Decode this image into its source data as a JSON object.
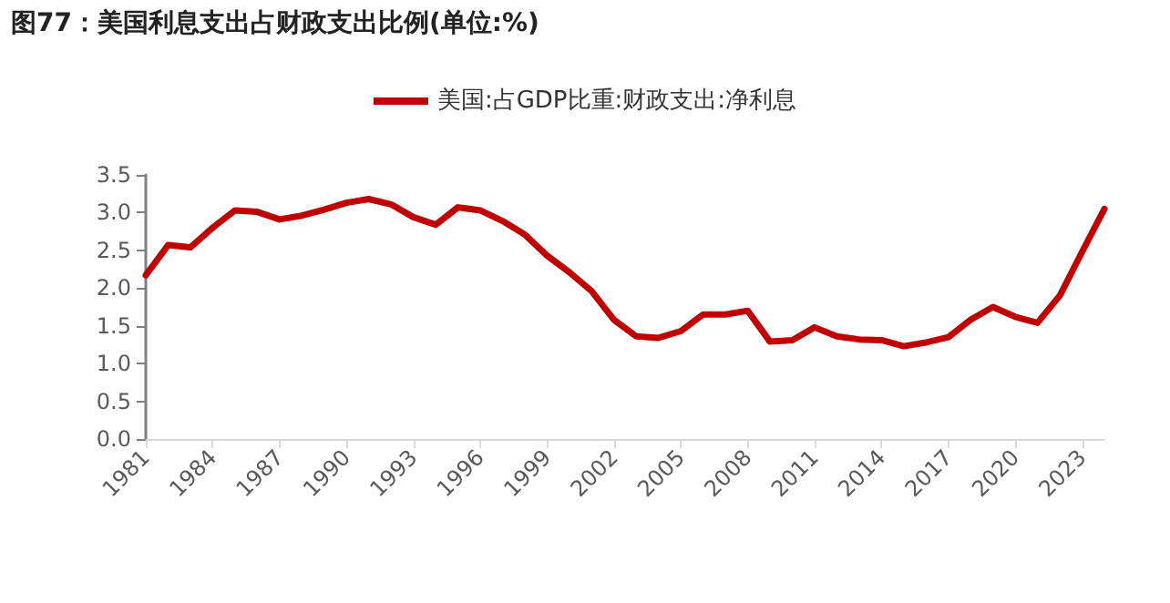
{
  "chart_data": {
    "type": "line",
    "title": "图77：美国利息支出占财政支出比例(单位:%)",
    "categories": [
      "1981",
      null,
      null,
      "1984",
      null,
      null,
      "1987",
      null,
      null,
      "1990",
      null,
      null,
      "1993",
      null,
      null,
      "1996",
      null,
      null,
      "1999",
      null,
      null,
      "2002",
      null,
      null,
      "2005",
      null,
      null,
      "2008",
      null,
      null,
      "2011",
      null,
      null,
      "2014",
      null,
      null,
      "2017",
      null,
      null,
      "2020",
      null,
      null,
      "2023",
      null
    ],
    "series": [
      {
        "name": "美国:占GDP比重:财政支出:净利息",
        "color": "#c00000",
        "values": [
          2.17,
          2.57,
          2.54,
          2.8,
          3.03,
          3.01,
          2.91,
          2.96,
          3.04,
          3.13,
          3.18,
          3.11,
          2.94,
          2.84,
          3.07,
          3.03,
          2.89,
          2.71,
          2.43,
          2.21,
          1.96,
          1.58,
          1.36,
          1.34,
          1.43,
          1.65,
          1.65,
          1.7,
          1.29,
          1.31,
          1.48,
          1.36,
          1.32,
          1.31,
          1.23,
          1.28,
          1.35,
          1.58,
          1.75,
          1.62,
          1.54,
          1.9,
          2.48,
          3.05
        ]
      }
    ],
    "ylim": [
      0,
      3.5
    ],
    "yticks": [
      {
        "value": 0,
        "label": "0.0"
      },
      {
        "value": 0.5,
        "label": "0.5"
      },
      {
        "value": 1,
        "label": "1.0"
      },
      {
        "value": 1.5,
        "label": "1.5"
      },
      {
        "value": 2,
        "label": "2.0"
      },
      {
        "value": 2.5,
        "label": "2.5"
      },
      {
        "value": 3,
        "label": "3.0"
      },
      {
        "value": 3.5,
        "label": "3.5"
      }
    ],
    "grid": false,
    "legend": "top",
    "marker": "none",
    "line_style": "solid"
  }
}
